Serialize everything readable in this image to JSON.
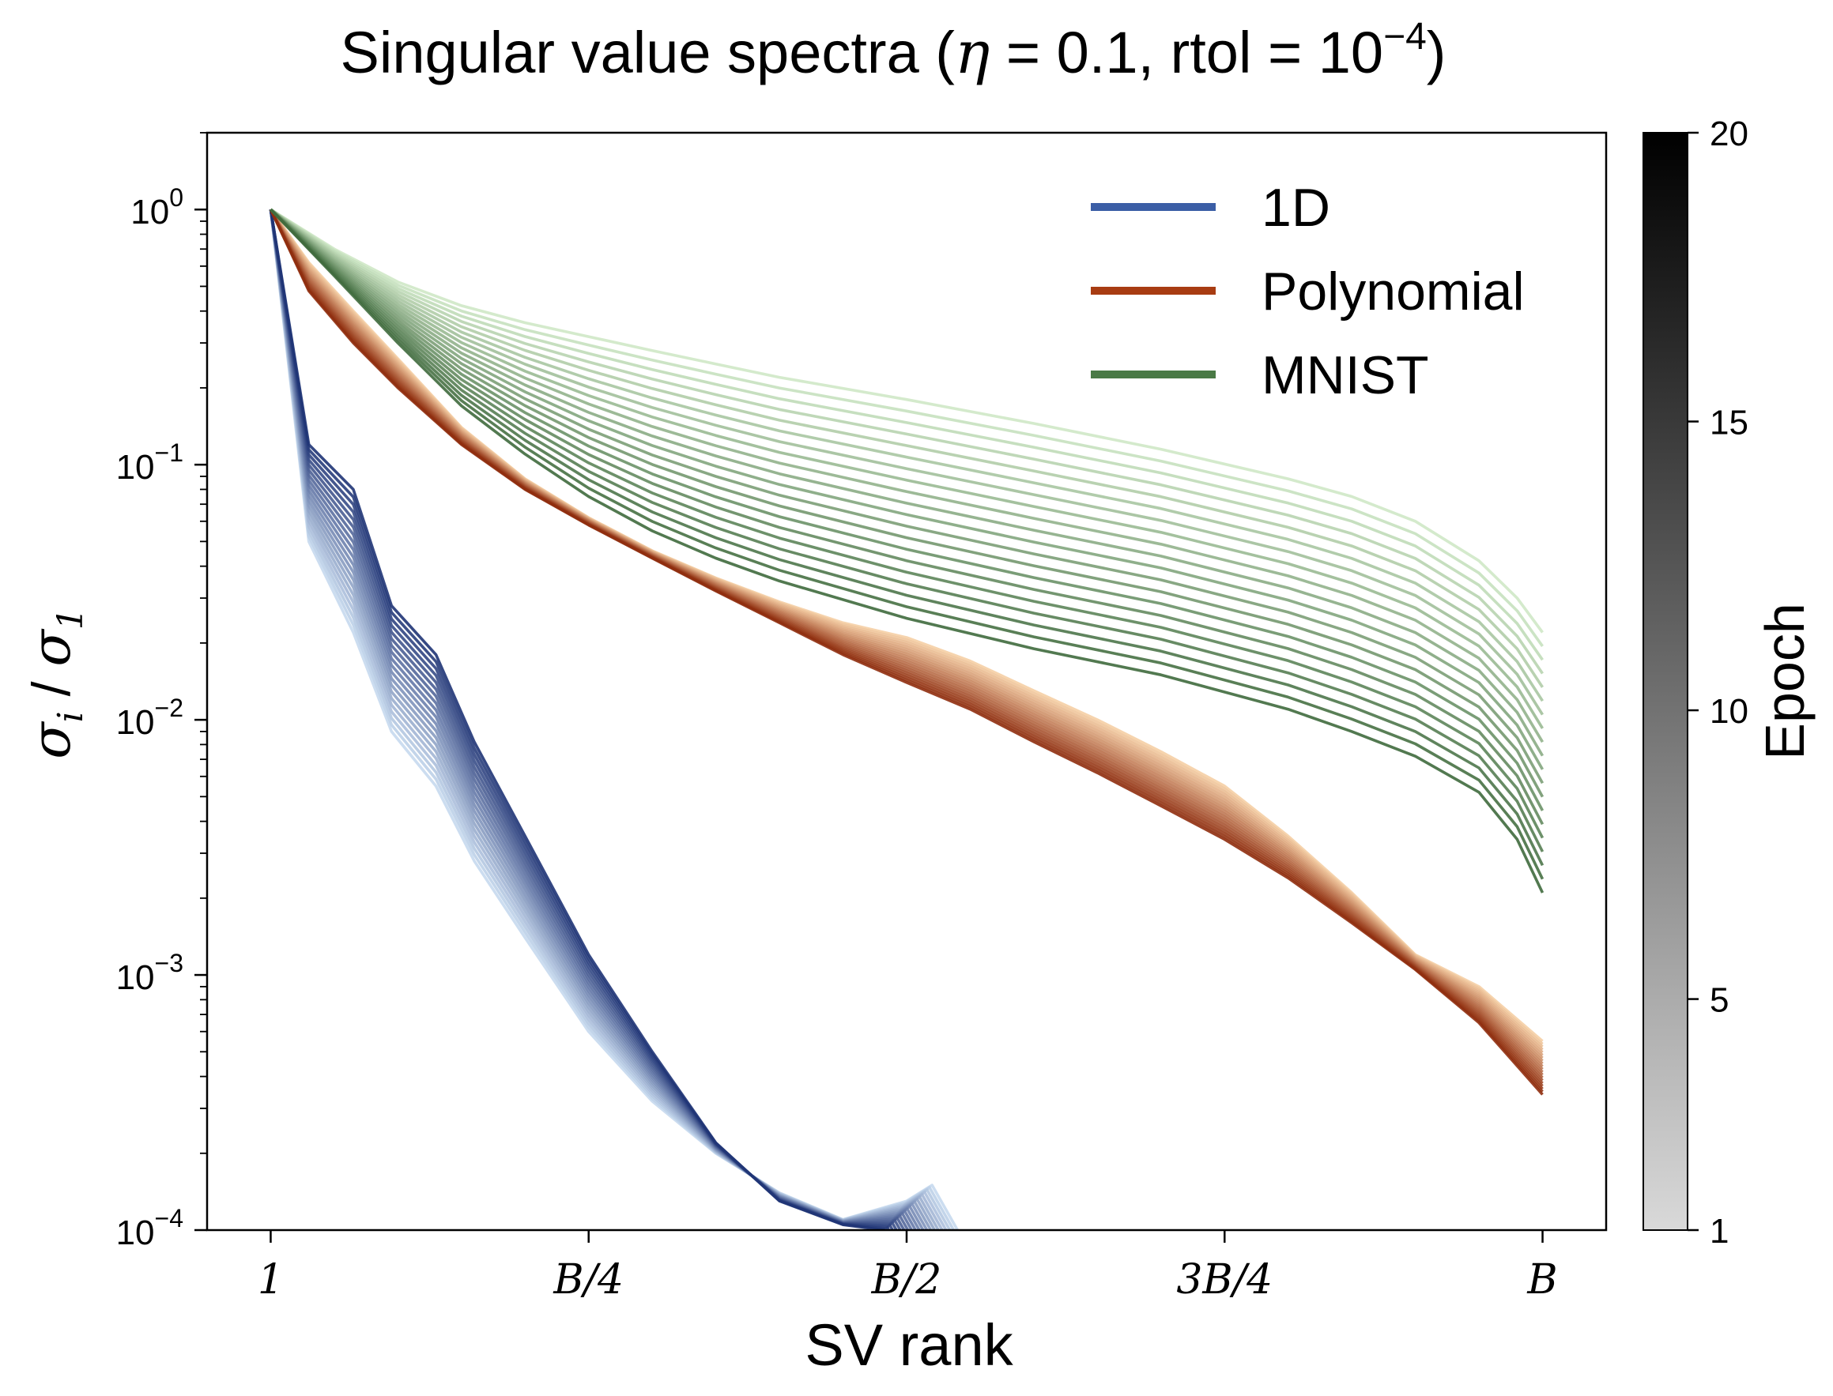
{
  "chart_data": {
    "type": "line",
    "title": "Singular value spectra  (η = 0.1,  rtol = 10⁻⁴)",
    "title_parts": {
      "prefix": "Singular value spectra  (",
      "eta": "η",
      "eta_value": " = 0.1,",
      "rtol": "  rtol = ",
      "base": "10",
      "exponent": "−4",
      "suffix": ")"
    },
    "xlabel": "SV rank",
    "ylabel": "σ_i / σ_1",
    "ylabel_parts": {
      "sigma": "σ",
      "i": "i",
      "slash": " / ",
      "one": "1"
    },
    "x_scale": "linear",
    "y_scale": "log",
    "xlim": [
      -0.05,
      1.05
    ],
    "ylim": [
      0.0001,
      2
    ],
    "x_ticks": [
      {
        "x": 0,
        "label": "1"
      },
      {
        "x": 0.25,
        "label": "B/4"
      },
      {
        "x": 0.5,
        "label": "B/2"
      },
      {
        "x": 0.75,
        "label": "3B/4"
      },
      {
        "x": 1.0,
        "label": "B"
      }
    ],
    "y_ticks": [
      {
        "y": 1,
        "base": "10",
        "exp": "0"
      },
      {
        "y": 0.1,
        "base": "10",
        "exp": "−1"
      },
      {
        "y": 0.01,
        "base": "10",
        "exp": "−2"
      },
      {
        "y": 0.001,
        "base": "10",
        "exp": "−3"
      },
      {
        "y": 0.0001,
        "base": "10",
        "exp": "−4"
      }
    ],
    "grid": false,
    "legend_position": "top-right",
    "legend": [
      {
        "name": "1D",
        "color": "#3b5ea6"
      },
      {
        "name": "Polynomial",
        "color": "#a83c12"
      },
      {
        "name": "MNIST",
        "color": "#4a7a46"
      }
    ],
    "colorbar": {
      "label": "Epoch",
      "min": 1,
      "max": 20,
      "ticks": [
        1,
        5,
        10,
        15,
        20
      ],
      "colors": [
        "#d9d9d9",
        "#000000"
      ]
    },
    "series": [
      {
        "name": "1D",
        "epochs": [
          1,
          20
        ],
        "color_light": "#c6d9ee",
        "color_dark": "#1f3475",
        "first_epoch": {
          "x": [
            0,
            0.03,
            0.065,
            0.095,
            0.13,
            0.16,
            0.2,
            0.25,
            0.3,
            0.35,
            0.4,
            0.45,
            0.5,
            0.52,
            0.54
          ],
          "y": [
            1,
            0.05,
            0.022,
            0.009,
            0.0055,
            0.0028,
            0.0014,
            0.0006,
            0.00032,
            0.0002,
            0.00014,
            0.00011,
            0.00013,
            0.00015,
            0.0001
          ]
        },
        "last_epoch": {
          "x": [
            0,
            0.03,
            0.065,
            0.095,
            0.13,
            0.16,
            0.2,
            0.25,
            0.3,
            0.35,
            0.4,
            0.45,
            0.483
          ],
          "y": [
            1,
            0.12,
            0.08,
            0.028,
            0.018,
            0.0082,
            0.0035,
            0.0012,
            0.0005,
            0.00022,
            0.00013,
            0.000105,
            0.0001
          ]
        }
      },
      {
        "name": "Polynomial",
        "epochs": [
          1,
          20
        ],
        "color_light": "#f5cfa5",
        "color_dark": "#8f2d0e",
        "first_epoch": {
          "x": [
            0,
            0.03,
            0.065,
            0.1,
            0.15,
            0.2,
            0.25,
            0.3,
            0.35,
            0.4,
            0.45,
            0.5,
            0.55,
            0.6,
            0.65,
            0.7,
            0.75,
            0.8,
            0.85,
            0.9,
            0.95,
            1.0
          ],
          "y": [
            1,
            0.62,
            0.4,
            0.26,
            0.14,
            0.088,
            0.062,
            0.046,
            0.036,
            0.029,
            0.024,
            0.021,
            0.017,
            0.013,
            0.01,
            0.0075,
            0.0055,
            0.0035,
            0.0021,
            0.0012,
            0.0009,
            0.00055
          ]
        },
        "last_epoch": {
          "x": [
            0,
            0.03,
            0.065,
            0.1,
            0.15,
            0.2,
            0.25,
            0.3,
            0.35,
            0.4,
            0.45,
            0.5,
            0.55,
            0.6,
            0.65,
            0.7,
            0.75,
            0.8,
            0.85,
            0.9,
            0.95,
            1.0
          ],
          "y": [
            1,
            0.48,
            0.3,
            0.2,
            0.12,
            0.08,
            0.058,
            0.043,
            0.032,
            0.024,
            0.018,
            0.014,
            0.011,
            0.0082,
            0.0062,
            0.0046,
            0.0034,
            0.0024,
            0.0016,
            0.00105,
            0.00065,
            0.00034
          ]
        }
      },
      {
        "name": "MNIST",
        "epochs": [
          1,
          20
        ],
        "color_light": "#cfe8c6",
        "color_dark": "#3f6a3d",
        "first_epoch": {
          "x": [
            0,
            0.05,
            0.1,
            0.15,
            0.2,
            0.3,
            0.4,
            0.5,
            0.6,
            0.7,
            0.8,
            0.85,
            0.9,
            0.95,
            0.98,
            1.0
          ],
          "y": [
            1,
            0.7,
            0.52,
            0.42,
            0.36,
            0.28,
            0.22,
            0.18,
            0.145,
            0.115,
            0.088,
            0.075,
            0.06,
            0.042,
            0.03,
            0.022
          ]
        },
        "last_epoch": {
          "x": [
            0,
            0.05,
            0.1,
            0.15,
            0.2,
            0.25,
            0.3,
            0.35,
            0.4,
            0.5,
            0.6,
            0.7,
            0.8,
            0.85,
            0.9,
            0.95,
            0.98,
            1.0
          ],
          "y": [
            1,
            0.55,
            0.3,
            0.17,
            0.11,
            0.075,
            0.055,
            0.043,
            0.035,
            0.025,
            0.019,
            0.015,
            0.011,
            0.009,
            0.0072,
            0.0052,
            0.0034,
            0.0021
          ]
        }
      }
    ]
  }
}
